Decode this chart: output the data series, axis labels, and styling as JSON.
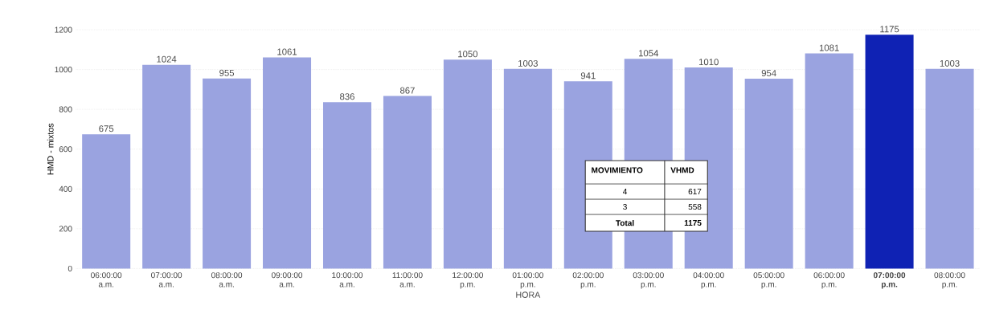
{
  "chart_data": {
    "type": "bar",
    "xlabel": "HORA",
    "ylabel": "HMD - mixtos",
    "categories": [
      "06:00:00 a.m.",
      "07:00:00 a.m.",
      "08:00:00 a.m.",
      "09:00:00 a.m.",
      "10:00:00 a.m.",
      "11:00:00 a.m.",
      "12:00:00 p.m.",
      "01:00:00 p.m.",
      "02:00:00 p.m.",
      "03:00:00 p.m.",
      "04:00:00 p.m.",
      "05:00:00 p.m.",
      "06:00:00 p.m.",
      "07:00:00 p.m.",
      "08:00:00 p.m."
    ],
    "values": [
      675,
      1024,
      955,
      1061,
      836,
      867,
      1050,
      1003,
      941,
      1054,
      1010,
      954,
      1081,
      1175,
      1003
    ],
    "colors": [
      "#9aa3e0",
      "#9aa3e0",
      "#9aa3e0",
      "#9aa3e0",
      "#9aa3e0",
      "#9aa3e0",
      "#9aa3e0",
      "#9aa3e0",
      "#9aa3e0",
      "#9aa3e0",
      "#9aa3e0",
      "#9aa3e0",
      "#9aa3e0",
      "#0f22b4",
      "#9aa3e0"
    ],
    "ylim": [
      0,
      1200
    ],
    "yticks": [
      0,
      200,
      400,
      600,
      800,
      1000,
      1200
    ],
    "grid": "y",
    "data_labels": true,
    "annotations": [
      "MOVIMIENTO",
      "VHMD",
      "4",
      "617",
      "3",
      "558",
      "Total",
      "1175"
    ]
  }
}
